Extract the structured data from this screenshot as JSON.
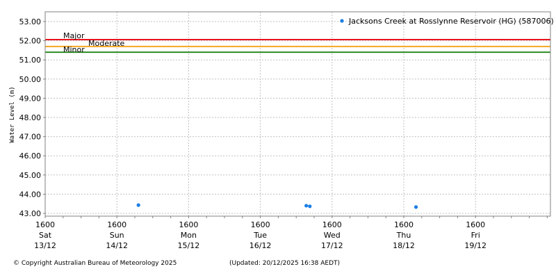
{
  "chart_data": {
    "type": "scatter",
    "title": "",
    "xlabel": "",
    "ylabel": "Water Level (m)",
    "ylim": [
      42.9,
      53.5
    ],
    "y_ticks": [
      "53.00",
      "52.00",
      "51.00",
      "50.00",
      "49.00",
      "48.00",
      "47.00",
      "46.00",
      "45.00",
      "44.00",
      "43.00"
    ],
    "x_ticks": [
      {
        "time": "1600",
        "day": "Sat",
        "date": "13/12"
      },
      {
        "time": "1600",
        "day": "Sun",
        "date": "14/12"
      },
      {
        "time": "1600",
        "day": "Mon",
        "date": "15/12"
      },
      {
        "time": "1600",
        "day": "Tue",
        "date": "16/12"
      },
      {
        "time": "1600",
        "day": "Wed",
        "date": "17/12"
      },
      {
        "time": "1600",
        "day": "Thu",
        "date": "18/12"
      },
      {
        "time": "1600",
        "day": "Fri",
        "date": "19/12"
      }
    ],
    "grid": true,
    "legend_position": "top-right",
    "series": [
      {
        "name": "Jacksons Creek at Rosslynne Reservoir (HG) (587006)",
        "color": "#1a7ee6",
        "points": [
          {
            "x_days": 1.3,
            "y": 43.43
          },
          {
            "x_days": 3.64,
            "y": 43.4
          },
          {
            "x_days": 3.69,
            "y": 43.37
          },
          {
            "x_days": 5.17,
            "y": 43.33
          }
        ]
      }
    ],
    "thresholds": [
      {
        "label": "Major",
        "value": 52.06,
        "color": "#e8141c"
      },
      {
        "label": "Moderate",
        "value": 51.7,
        "color": "#f5a623"
      },
      {
        "label": "Minor",
        "value": 51.4,
        "color": "#2e8b22"
      }
    ]
  },
  "footer": {
    "copyright": "© Copyright Australian Bureau of Meteorology 2025",
    "updated": "(Updated: 20/12/2025 16:38 AEDT)"
  }
}
